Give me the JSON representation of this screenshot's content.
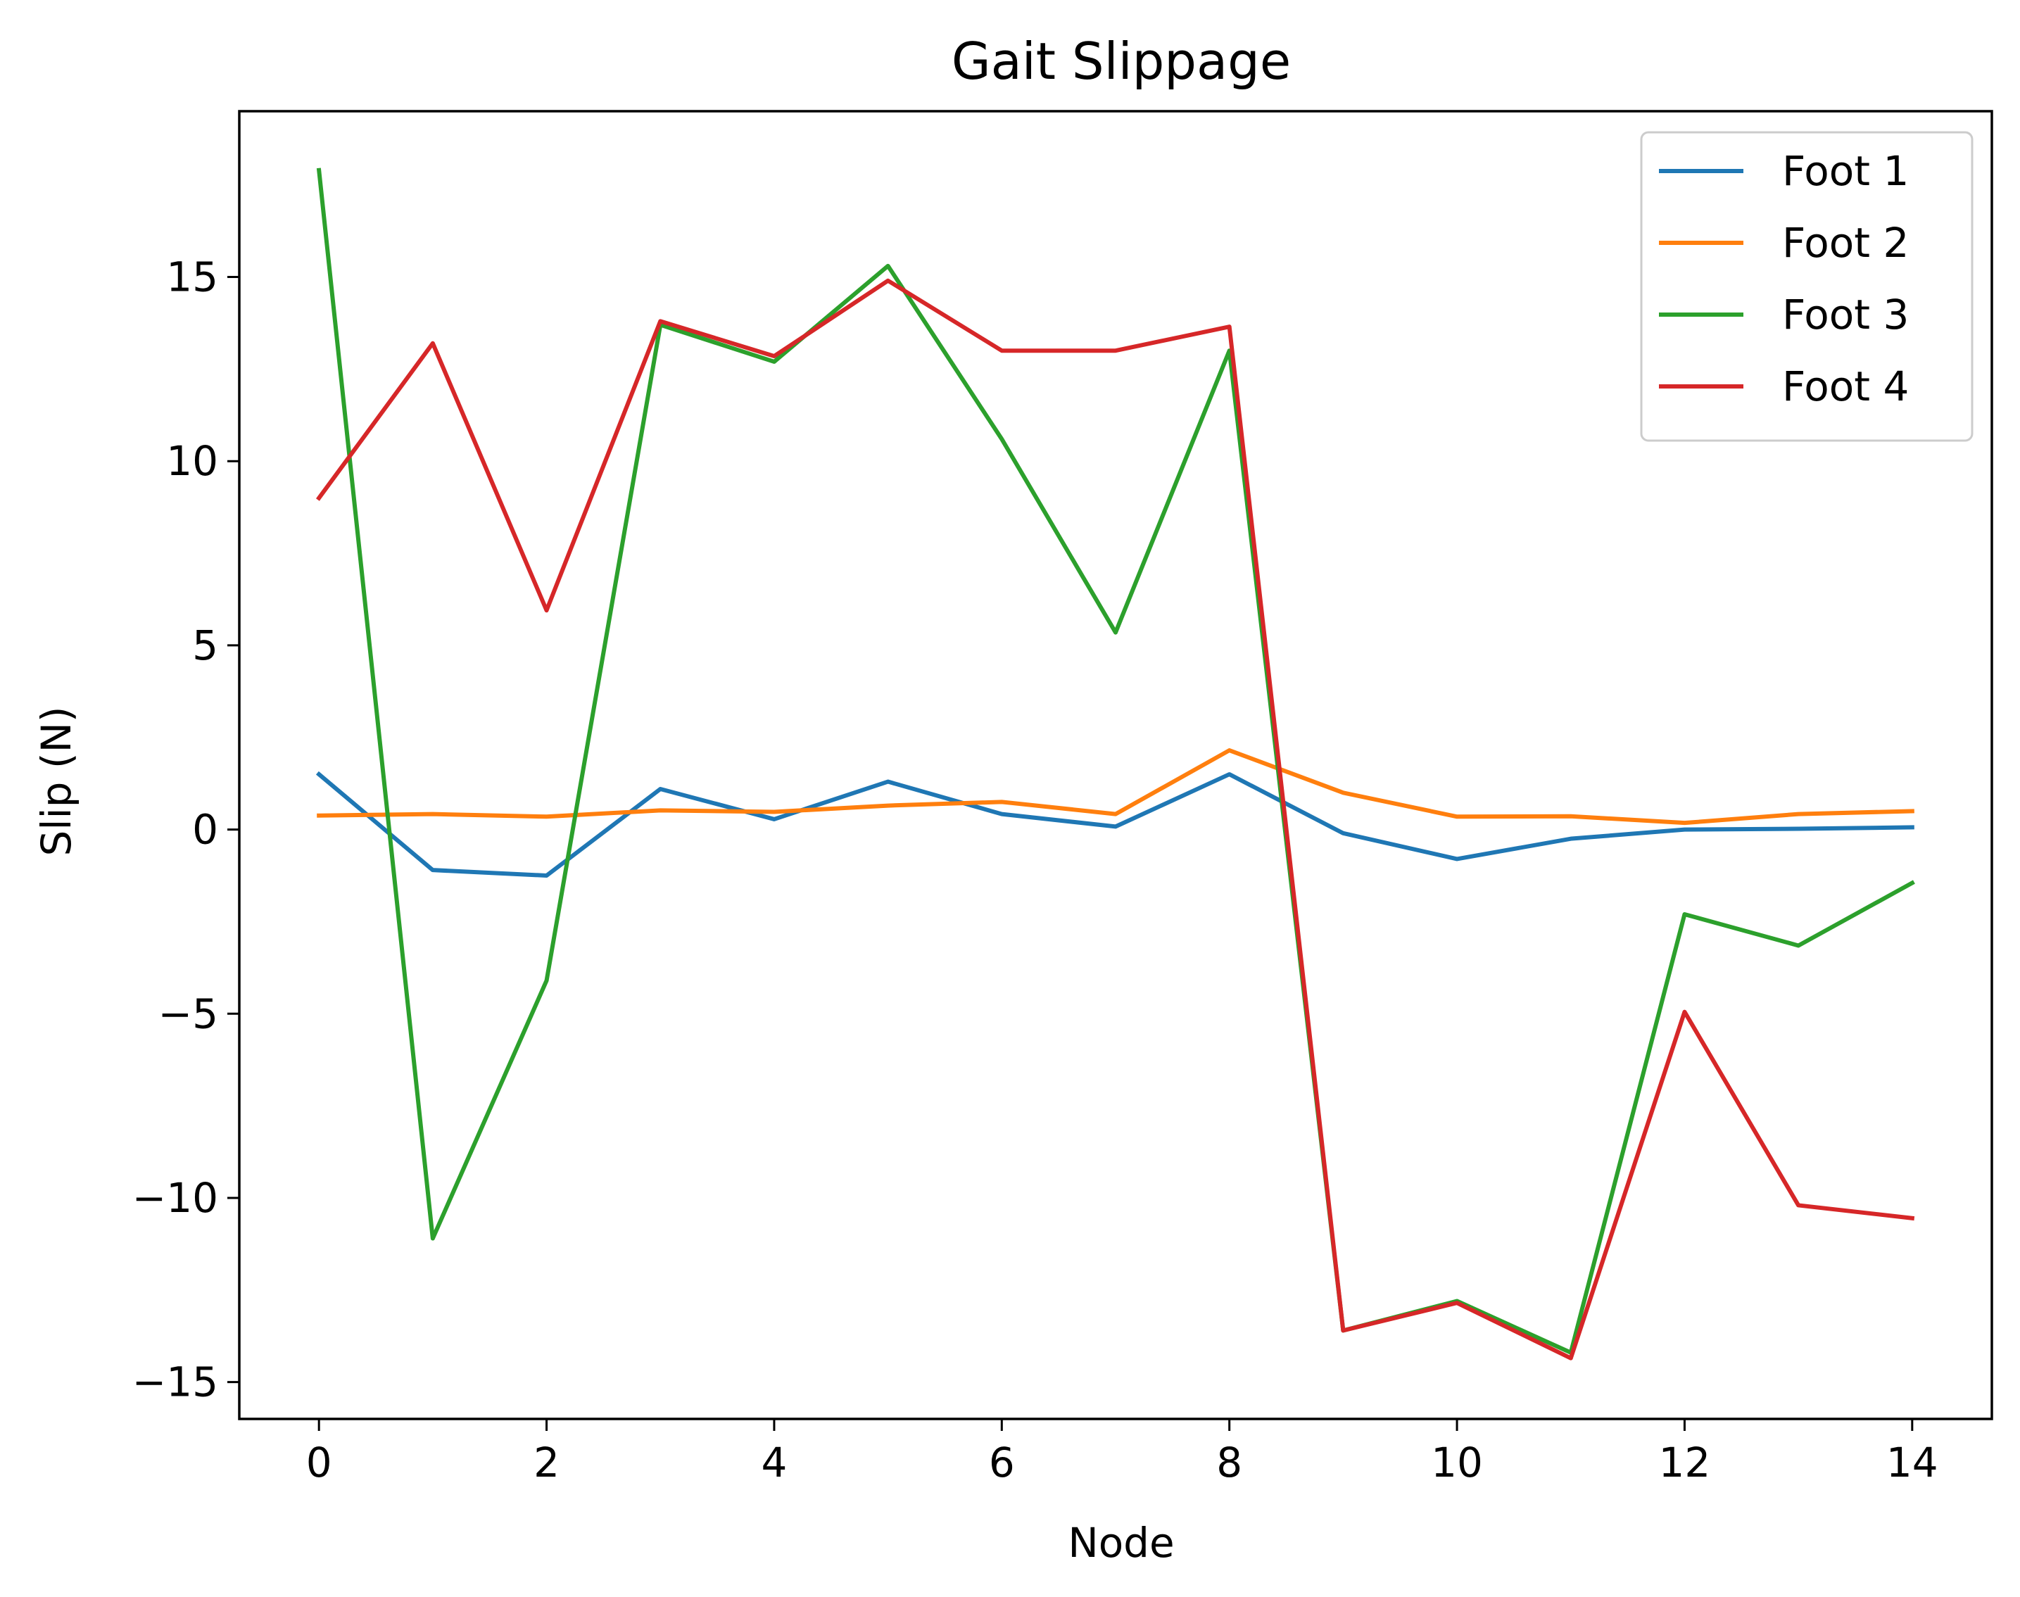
{
  "chart_data": {
    "type": "line",
    "title": "Gait Slippage",
    "xlabel": "Node",
    "ylabel": "Slip (N)",
    "xlim": [
      -0.7,
      14.7
    ],
    "ylim": [
      -16.0,
      19.5
    ],
    "x_ticks": [
      0,
      2,
      4,
      6,
      8,
      10,
      12,
      14
    ],
    "x_tick_labels": [
      "0",
      "2",
      "4",
      "6",
      "8",
      "10",
      "12",
      "14"
    ],
    "y_ticks": [
      -15,
      -10,
      -5,
      0,
      5,
      10,
      15
    ],
    "y_tick_labels": [
      "−15",
      "−10",
      "−5",
      "0",
      "5",
      "10",
      "15"
    ],
    "grid": false,
    "legend_position": "top-right",
    "x": [
      0,
      1,
      2,
      3,
      4,
      5,
      6,
      7,
      8,
      9,
      10,
      11,
      12,
      13,
      14
    ],
    "series": [
      {
        "name": "Foot 1",
        "color": "#1f77b4",
        "values": [
          1.5,
          -1.1,
          -1.25,
          1.1,
          0.28,
          1.3,
          0.42,
          0.08,
          1.5,
          -0.1,
          -0.8,
          -0.25,
          0.0,
          0.02,
          0.06
        ]
      },
      {
        "name": "Foot 2",
        "color": "#ff7f0e",
        "values": [
          0.38,
          0.42,
          0.35,
          0.52,
          0.48,
          0.65,
          0.75,
          0.42,
          2.15,
          1.0,
          0.35,
          0.36,
          0.18,
          0.42,
          0.5
        ]
      },
      {
        "name": "Foot 3",
        "color": "#2ca02c",
        "values": [
          17.9,
          -11.1,
          -4.1,
          13.7,
          12.7,
          15.3,
          10.6,
          5.35,
          13.0,
          -13.6,
          -12.8,
          -14.2,
          -2.3,
          -3.15,
          -1.45
        ]
      },
      {
        "name": "Foot 4",
        "color": "#d62728",
        "values": [
          9.0,
          13.2,
          5.95,
          13.8,
          12.85,
          14.9,
          13.0,
          13.0,
          13.65,
          -13.6,
          -12.85,
          -14.35,
          -4.95,
          -10.2,
          -10.55
        ]
      }
    ]
  }
}
